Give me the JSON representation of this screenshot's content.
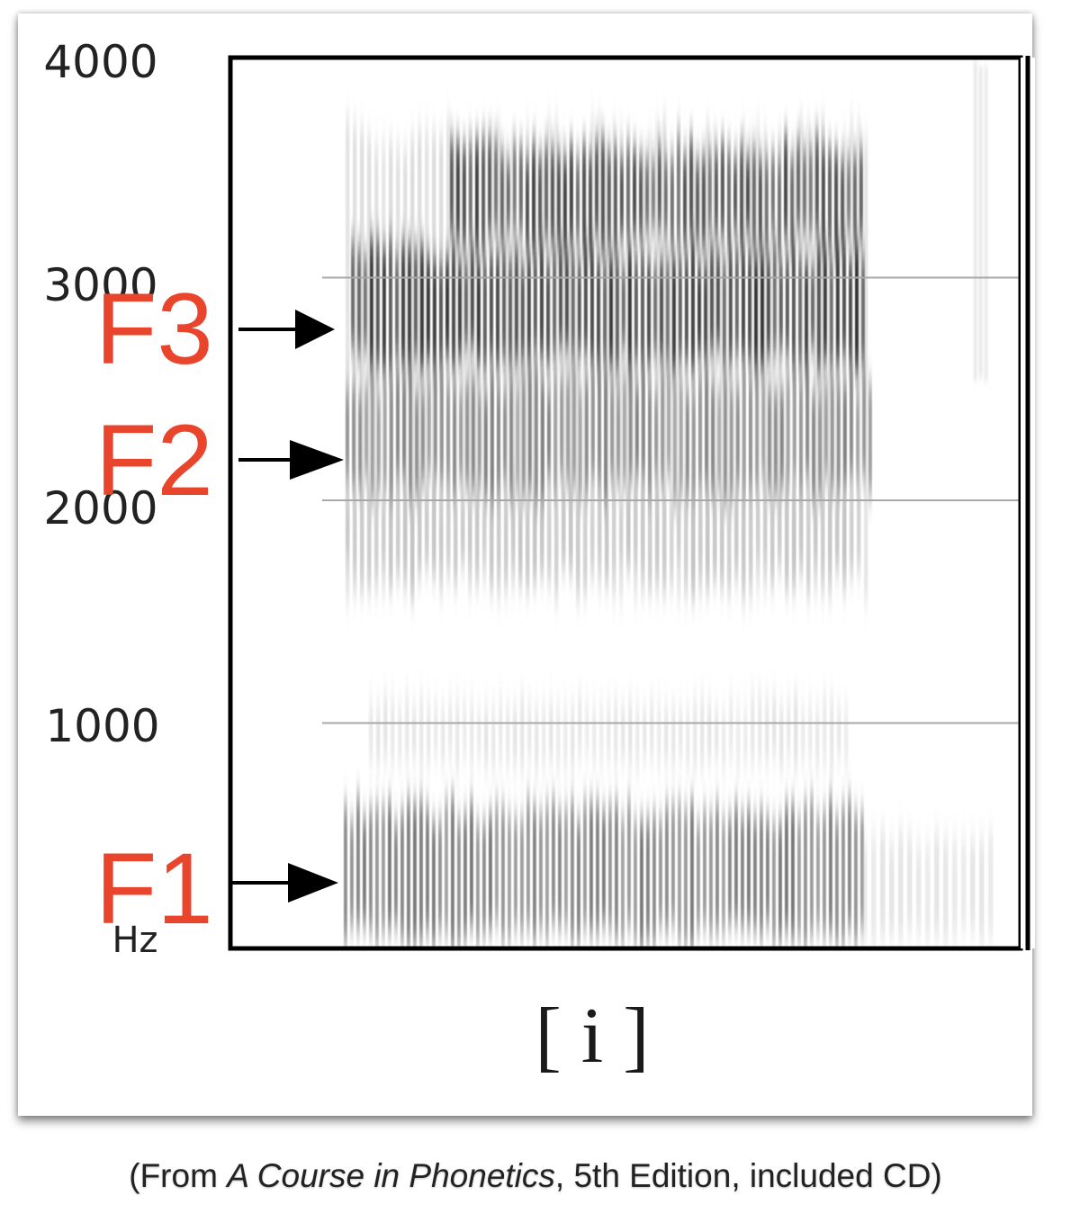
{
  "figure": {
    "y_ticks": [
      "4000",
      "3000",
      "2000",
      "1000"
    ],
    "y_unit": "Hz",
    "x_label": "[ i ]",
    "formants": [
      {
        "name": "F1",
        "hz": 730
      },
      {
        "name": "F2",
        "hz": 2170
      },
      {
        "name": "F3",
        "hz": 2750
      }
    ],
    "label_color": "#e8452c"
  },
  "caption": {
    "open": "(From ",
    "book": "A Course in Phonetics",
    "rest": ", 5th Edition, included CD)"
  }
}
